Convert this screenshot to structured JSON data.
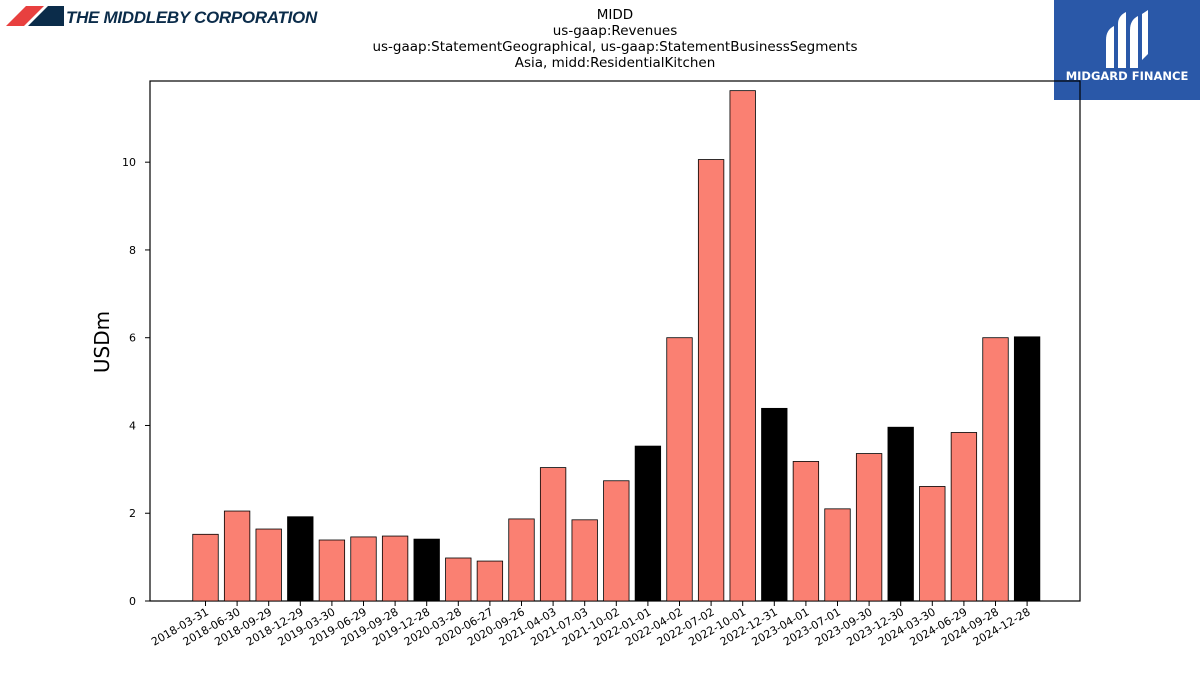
{
  "header": {
    "company_name": "THE MIDDLEBY CORPORATION",
    "brand_name": "MIDGARD FINANCE",
    "brand_color": "#2a58a8",
    "logo_colors": [
      "#e8403f",
      "#0b2c4a"
    ]
  },
  "chart_data": {
    "type": "bar",
    "title_lines": [
      "MIDD",
      "us-gaap:Revenues",
      "us-gaap:StatementGeographical, us-gaap:StatementBusinessSegments",
      "Asia, midd:ResidentialKitchen"
    ],
    "xlabel": "",
    "ylabel": "USDm",
    "ylim": [
      0,
      11.85
    ],
    "yticks": [
      0,
      2,
      4,
      6,
      8,
      10
    ],
    "bar_colors": {
      "quarter": "#fa8072",
      "fiscal_year_end": "#000000"
    },
    "grid": false,
    "categories": [
      "2018-03-31",
      "2018-06-30",
      "2018-09-29",
      "2018-12-29",
      "2019-03-30",
      "2019-06-29",
      "2019-09-28",
      "2019-12-28",
      "2020-03-28",
      "2020-06-27",
      "2020-09-26",
      "2021-04-03",
      "2021-07-03",
      "2021-10-02",
      "2022-01-01",
      "2022-04-02",
      "2022-07-02",
      "2022-10-01",
      "2022-12-31",
      "2023-04-01",
      "2023-07-01",
      "2023-09-30",
      "2023-12-30",
      "2024-03-30",
      "2024-06-29",
      "2024-09-28",
      "2024-12-28"
    ],
    "values": [
      1.52,
      2.05,
      1.64,
      1.92,
      1.39,
      1.46,
      1.48,
      1.41,
      0.98,
      0.91,
      1.87,
      3.04,
      1.85,
      2.74,
      3.53,
      6.0,
      10.06,
      11.63,
      4.39,
      3.18,
      2.1,
      3.36,
      3.96,
      2.61,
      3.84,
      6.0,
      6.02
    ],
    "highlight": [
      false,
      false,
      false,
      true,
      false,
      false,
      false,
      true,
      false,
      false,
      false,
      false,
      false,
      false,
      true,
      false,
      false,
      false,
      true,
      false,
      false,
      false,
      true,
      false,
      false,
      false,
      true
    ]
  }
}
